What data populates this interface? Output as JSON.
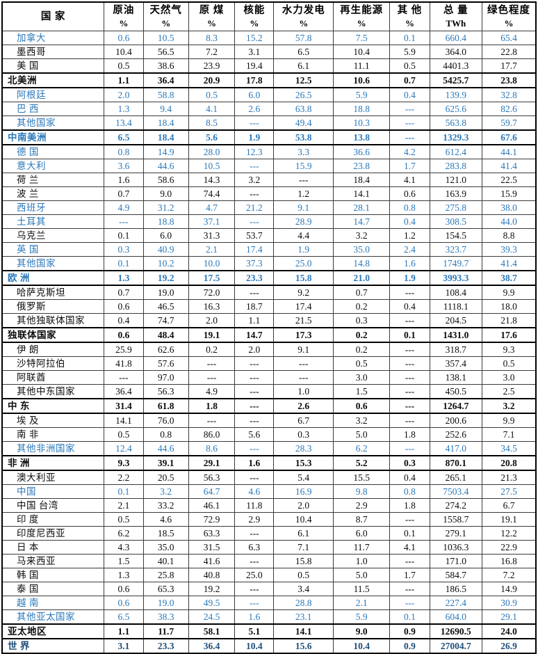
{
  "colors": {
    "text_black": "#0c0c0c",
    "text_blue": "#2b78b9",
    "text_navy": "#1f4e79",
    "border_thin": "#3a3a3a",
    "border_thick": "#000000",
    "background": "#ffffff"
  },
  "table": {
    "header": {
      "columns": [
        {
          "label": "国  家",
          "unit": ""
        },
        {
          "label": "原油",
          "unit": "%"
        },
        {
          "label": "天然气",
          "unit": "%"
        },
        {
          "label": "原 煤",
          "unit": "%"
        },
        {
          "label": "核能",
          "unit": "%"
        },
        {
          "label": "水力发电",
          "unit": "%"
        },
        {
          "label": "再生能源",
          "unit": "%"
        },
        {
          "label": "其 他",
          "unit": "%"
        },
        {
          "label": "总 量",
          "unit": "TWh"
        },
        {
          "label": "绿色程度",
          "unit": "%"
        }
      ]
    },
    "rows": [
      {
        "name": "加拿大",
        "color": "blue",
        "region": false,
        "values": [
          "0.6",
          "10.5",
          "8.3",
          "15.2",
          "57.8",
          "7.5",
          "0.1",
          "660.4",
          "65.4"
        ]
      },
      {
        "name": "墨西哥",
        "color": "black",
        "region": false,
        "values": [
          "10.4",
          "56.5",
          "7.2",
          "3.1",
          "6.5",
          "10.4",
          "5.9",
          "364.0",
          "22.8"
        ]
      },
      {
        "name": "美 国",
        "color": "black",
        "region": false,
        "values": [
          "0.5",
          "38.6",
          "23.9",
          "19.4",
          "6.1",
          "11.1",
          "0.5",
          "4401.3",
          "17.7"
        ]
      },
      {
        "name": "北美洲",
        "color": "black",
        "region": true,
        "values": [
          "1.1",
          "36.4",
          "20.9",
          "17.8",
          "12.5",
          "10.6",
          "0.7",
          "5425.7",
          "23.8"
        ]
      },
      {
        "name": "阿根廷",
        "color": "blue",
        "region": false,
        "values": [
          "2.0",
          "58.8",
          "0.5",
          "6.0",
          "26.5",
          "5.9",
          "0.4",
          "139.9",
          "32.8"
        ]
      },
      {
        "name": "巴 西",
        "color": "blue",
        "region": false,
        "values": [
          "1.3",
          "9.4",
          "4.1",
          "2.6",
          "63.8",
          "18.8",
          "---",
          "625.6",
          "82.6"
        ]
      },
      {
        "name": "其他国家",
        "color": "blue",
        "region": false,
        "values": [
          "13.4",
          "18.4",
          "8.5",
          "---",
          "49.4",
          "10.3",
          "---",
          "563.8",
          "59.7"
        ]
      },
      {
        "name": "中南美洲",
        "color": "blue",
        "region": true,
        "values": [
          "6.5",
          "18.4",
          "5.6",
          "1.9",
          "53.8",
          "13.8",
          "---",
          "1329.3",
          "67.6"
        ]
      },
      {
        "name": "德 国",
        "color": "blue",
        "region": false,
        "values": [
          "0.8",
          "14.9",
          "28.0",
          "12.3",
          "3.3",
          "36.6",
          "4.2",
          "612.4",
          "44.1"
        ]
      },
      {
        "name": "意大利",
        "color": "blue",
        "region": false,
        "values": [
          "3.6",
          "44.6",
          "10.5",
          "---",
          "15.9",
          "23.8",
          "1.7",
          "283.8",
          "41.4"
        ]
      },
      {
        "name": "荷 兰",
        "color": "black",
        "region": false,
        "values": [
          "1.6",
          "58.6",
          "14.3",
          "3.2",
          "---",
          "18.4",
          "4.1",
          "121.0",
          "22.5"
        ]
      },
      {
        "name": "波 兰",
        "color": "black",
        "region": false,
        "values": [
          "0.7",
          "9.0",
          "74.4",
          "---",
          "1.2",
          "14.1",
          "0.6",
          "163.9",
          "15.9"
        ]
      },
      {
        "name": "西班牙",
        "color": "blue",
        "region": false,
        "values": [
          "4.9",
          "31.2",
          "4.7",
          "21.2",
          "9.1",
          "28.1",
          "0.8",
          "275.8",
          "38.0"
        ]
      },
      {
        "name": "土耳其",
        "color": "blue",
        "region": false,
        "values": [
          "---",
          "18.8",
          "37.1",
          "---",
          "28.9",
          "14.7",
          "0.4",
          "308.5",
          "44.0"
        ]
      },
      {
        "name": "乌克兰",
        "color": "black",
        "region": false,
        "values": [
          "0.1",
          "6.0",
          "31.3",
          "53.7",
          "4.4",
          "3.2",
          "1.2",
          "154.5",
          "8.8"
        ]
      },
      {
        "name": "英 国",
        "color": "blue",
        "region": false,
        "values": [
          "0.3",
          "40.9",
          "2.1",
          "17.4",
          "1.9",
          "35.0",
          "2.4",
          "323.7",
          "39.3"
        ]
      },
      {
        "name": "其他国家",
        "color": "blue",
        "region": false,
        "values": [
          "0.1",
          "10.2",
          "10.0",
          "37.3",
          "25.0",
          "14.8",
          "1.6",
          "1749.7",
          "41.4"
        ]
      },
      {
        "name": "欧 洲",
        "color": "blue",
        "region": true,
        "values": [
          "1.3",
          "19.2",
          "17.5",
          "23.3",
          "15.8",
          "21.0",
          "1.9",
          "3993.3",
          "38.7"
        ]
      },
      {
        "name": "哈萨克斯坦",
        "color": "black",
        "region": false,
        "values": [
          "0.7",
          "19.0",
          "72.0",
          "---",
          "9.2",
          "0.7",
          "---",
          "108.4",
          "9.9"
        ]
      },
      {
        "name": "俄罗斯",
        "color": "black",
        "region": false,
        "values": [
          "0.6",
          "46.5",
          "16.3",
          "18.7",
          "17.4",
          "0.2",
          "0.4",
          "1118.1",
          "18.0"
        ]
      },
      {
        "name": "其他独联体国家",
        "color": "black",
        "region": false,
        "values": [
          "0.4",
          "74.7",
          "2.0",
          "1.1",
          "21.5",
          "0.3",
          "---",
          "204.5",
          "21.8"
        ]
      },
      {
        "name": "独联体国家",
        "color": "black",
        "region": true,
        "values": [
          "0.6",
          "48.4",
          "19.1",
          "14.7",
          "17.3",
          "0.2",
          "0.1",
          "1431.0",
          "17.6"
        ]
      },
      {
        "name": "伊 朗",
        "color": "black",
        "region": false,
        "values": [
          "25.9",
          "62.6",
          "0.2",
          "2.0",
          "9.1",
          "0.2",
          "---",
          "318.7",
          "9.3"
        ]
      },
      {
        "name": "沙特阿拉伯",
        "color": "black",
        "region": false,
        "values": [
          "41.8",
          "57.6",
          "---",
          "---",
          "---",
          "0.5",
          "---",
          "357.4",
          "0.5"
        ]
      },
      {
        "name": "阿联酋",
        "color": "black",
        "region": false,
        "values": [
          "---",
          "97.0",
          "---",
          "---",
          "---",
          "3.0",
          "---",
          "138.1",
          "3.0"
        ]
      },
      {
        "name": "其他中东国家",
        "color": "black",
        "region": false,
        "values": [
          "36.4",
          "56.3",
          "4.9",
          "---",
          "1.0",
          "1.5",
          "---",
          "450.5",
          "2.5"
        ]
      },
      {
        "name": "中 东",
        "color": "black",
        "region": true,
        "values": [
          "31.4",
          "61.8",
          "1.8",
          "---",
          "2.6",
          "0.6",
          "---",
          "1264.7",
          "3.2"
        ]
      },
      {
        "name": "埃 及",
        "color": "black",
        "region": false,
        "values": [
          "14.1",
          "76.0",
          "---",
          "---",
          "6.7",
          "3.2",
          "---",
          "200.6",
          "9.9"
        ]
      },
      {
        "name": "南 非",
        "color": "black",
        "region": false,
        "values": [
          "0.5",
          "0.8",
          "86.0",
          "5.6",
          "0.3",
          "5.0",
          "1.8",
          "252.6",
          "7.1"
        ]
      },
      {
        "name": "其他非洲国家",
        "color": "blue",
        "region": false,
        "values": [
          "12.4",
          "44.6",
          "8.6",
          "---",
          "28.3",
          "6.2",
          "---",
          "417.0",
          "34.5"
        ]
      },
      {
        "name": "非 洲",
        "color": "black",
        "region": true,
        "values": [
          "9.3",
          "39.1",
          "29.1",
          "1.6",
          "15.3",
          "5.2",
          "0.3",
          "870.1",
          "20.8"
        ]
      },
      {
        "name": "澳大利亚",
        "color": "black",
        "region": false,
        "values": [
          "2.2",
          "20.5",
          "56.3",
          "---",
          "5.4",
          "15.5",
          "0.4",
          "265.1",
          "21.3"
        ]
      },
      {
        "name": "中国",
        "color": "blue",
        "region": false,
        "values": [
          "0.1",
          "3.2",
          "64.7",
          "4.6",
          "16.9",
          "9.8",
          "0.8",
          "7503.4",
          "27.5"
        ]
      },
      {
        "name": "中国 台湾",
        "color": "black",
        "region": false,
        "values": [
          "2.1",
          "33.2",
          "46.1",
          "11.8",
          "2.0",
          "2.9",
          "1.8",
          "274.2",
          "6.7"
        ]
      },
      {
        "name": "印 度",
        "color": "black",
        "region": false,
        "values": [
          "0.5",
          "4.6",
          "72.9",
          "2.9",
          "10.4",
          "8.7",
          "---",
          "1558.7",
          "19.1"
        ]
      },
      {
        "name": "印度尼西亚",
        "color": "black",
        "region": false,
        "values": [
          "6.2",
          "18.5",
          "63.3",
          "---",
          "6.1",
          "6.0",
          "0.1",
          "279.1",
          "12.2"
        ]
      },
      {
        "name": "日 本",
        "color": "black",
        "region": false,
        "values": [
          "4.3",
          "35.0",
          "31.5",
          "6.3",
          "7.1",
          "11.7",
          "4.1",
          "1036.3",
          "22.9"
        ]
      },
      {
        "name": "马来西亚",
        "color": "black",
        "region": false,
        "values": [
          "1.5",
          "40.1",
          "41.6",
          "---",
          "15.8",
          "1.0",
          "---",
          "171.0",
          "16.8"
        ]
      },
      {
        "name": "韩 国",
        "color": "black",
        "region": false,
        "values": [
          "1.3",
          "25.8",
          "40.8",
          "25.0",
          "0.5",
          "5.0",
          "1.7",
          "584.7",
          "7.2"
        ]
      },
      {
        "name": "泰 国",
        "color": "black",
        "region": false,
        "values": [
          "0.6",
          "65.3",
          "19.2",
          "---",
          "3.4",
          "11.5",
          "---",
          "186.5",
          "14.9"
        ]
      },
      {
        "name": "越 南",
        "color": "blue",
        "region": false,
        "values": [
          "0.6",
          "19.0",
          "49.5",
          "---",
          "28.8",
          "2.1",
          "---",
          "227.4",
          "30.9"
        ]
      },
      {
        "name": "其他亚太国家",
        "color": "blue",
        "region": false,
        "values": [
          "6.5",
          "38.3",
          "24.5",
          "1.6",
          "23.1",
          "5.9",
          "0.1",
          "604.0",
          "29.1"
        ]
      },
      {
        "name": "亚太地区",
        "color": "black",
        "region": true,
        "values": [
          "1.1",
          "11.7",
          "58.1",
          "5.1",
          "14.1",
          "9.0",
          "0.9",
          "12690.5",
          "24.0"
        ]
      },
      {
        "name": "世 界",
        "color": "navy",
        "region": true,
        "values": [
          "3.1",
          "23.3",
          "36.4",
          "10.4",
          "15.6",
          "10.4",
          "0.9",
          "27004.7",
          "26.9"
        ]
      }
    ]
  }
}
